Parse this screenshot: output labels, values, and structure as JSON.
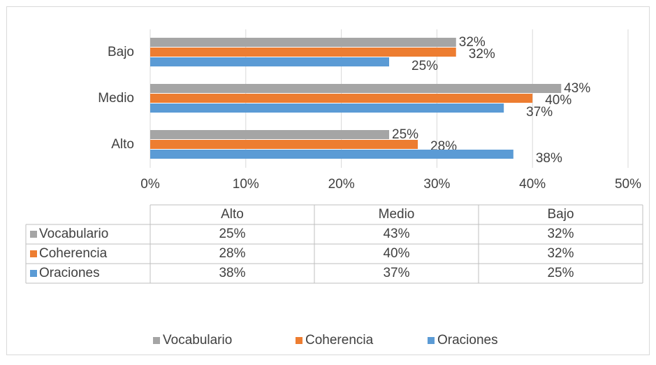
{
  "chart_data": {
    "type": "bar",
    "orientation": "horizontal",
    "categories": [
      "Alto",
      "Medio",
      "Bajo"
    ],
    "series": [
      {
        "name": "Vocabulario",
        "color": "#a5a5a5",
        "values": [
          25,
          43,
          32
        ],
        "value_labels": [
          "25%",
          "43%",
          "32%"
        ]
      },
      {
        "name": "Coherencia",
        "color": "#ed7d31",
        "values": [
          28,
          40,
          32
        ],
        "value_labels": [
          "28%",
          "40%",
          "32%"
        ]
      },
      {
        "name": "Oraciones",
        "color": "#5b9bd5",
        "values": [
          38,
          37,
          25
        ],
        "value_labels": [
          "38%",
          "37%",
          "25%"
        ]
      }
    ],
    "xlim": [
      0,
      50
    ],
    "xticks": [
      {
        "value": 0,
        "label": "0%"
      },
      {
        "value": 10,
        "label": "10%"
      },
      {
        "value": 20,
        "label": "20%"
      },
      {
        "value": 30,
        "label": "30%"
      },
      {
        "value": 40,
        "label": "40%"
      },
      {
        "value": 50,
        "label": "50%"
      }
    ],
    "grid": true,
    "legend": "bottom",
    "data_table": true
  }
}
